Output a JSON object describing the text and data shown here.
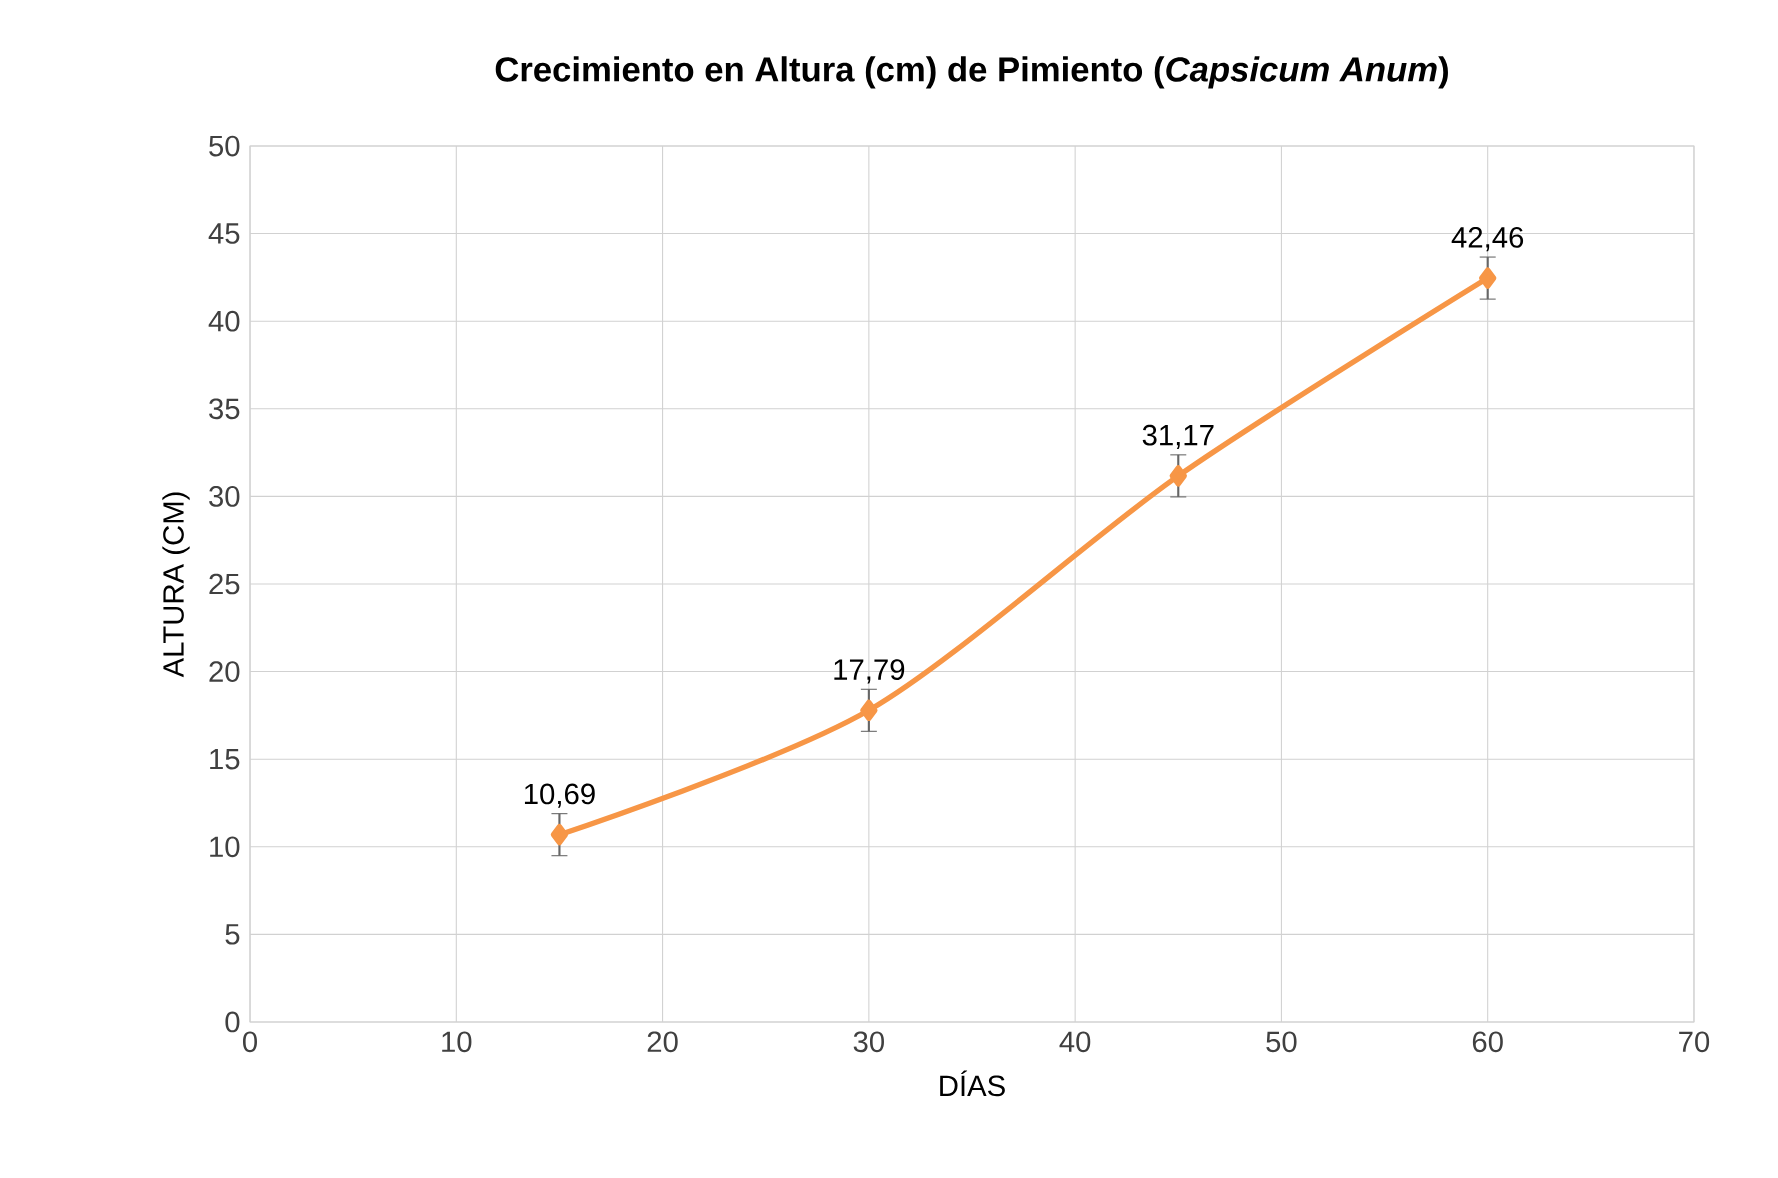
{
  "chart_data": {
    "type": "line",
    "title": "Crecimiento en Altura (cm) de Pimiento (*Capsicum Anum*)",
    "xlabel": "DÍAS",
    "ylabel": "ALTURA (CM)",
    "x": [
      15,
      30,
      45,
      60
    ],
    "series": [
      {
        "color": "#f79646",
        "values": [
          10.69,
          17.79,
          31.17,
          42.46
        ],
        "errors": [
          1.2,
          1.2,
          1.2,
          1.2
        ],
        "value_labels": [
          "10,69",
          "17,79",
          "31,17",
          "42,46"
        ]
      }
    ],
    "xlim": [
      0,
      70
    ],
    "xticks": [
      0,
      10,
      20,
      30,
      40,
      50,
      60,
      70
    ],
    "ylim": [
      0,
      50
    ],
    "yticks": [
      0,
      5,
      10,
      15,
      20,
      25,
      30,
      35,
      40,
      45,
      50
    ],
    "grid": true,
    "marker": "diamond",
    "line_style": "solid"
  }
}
